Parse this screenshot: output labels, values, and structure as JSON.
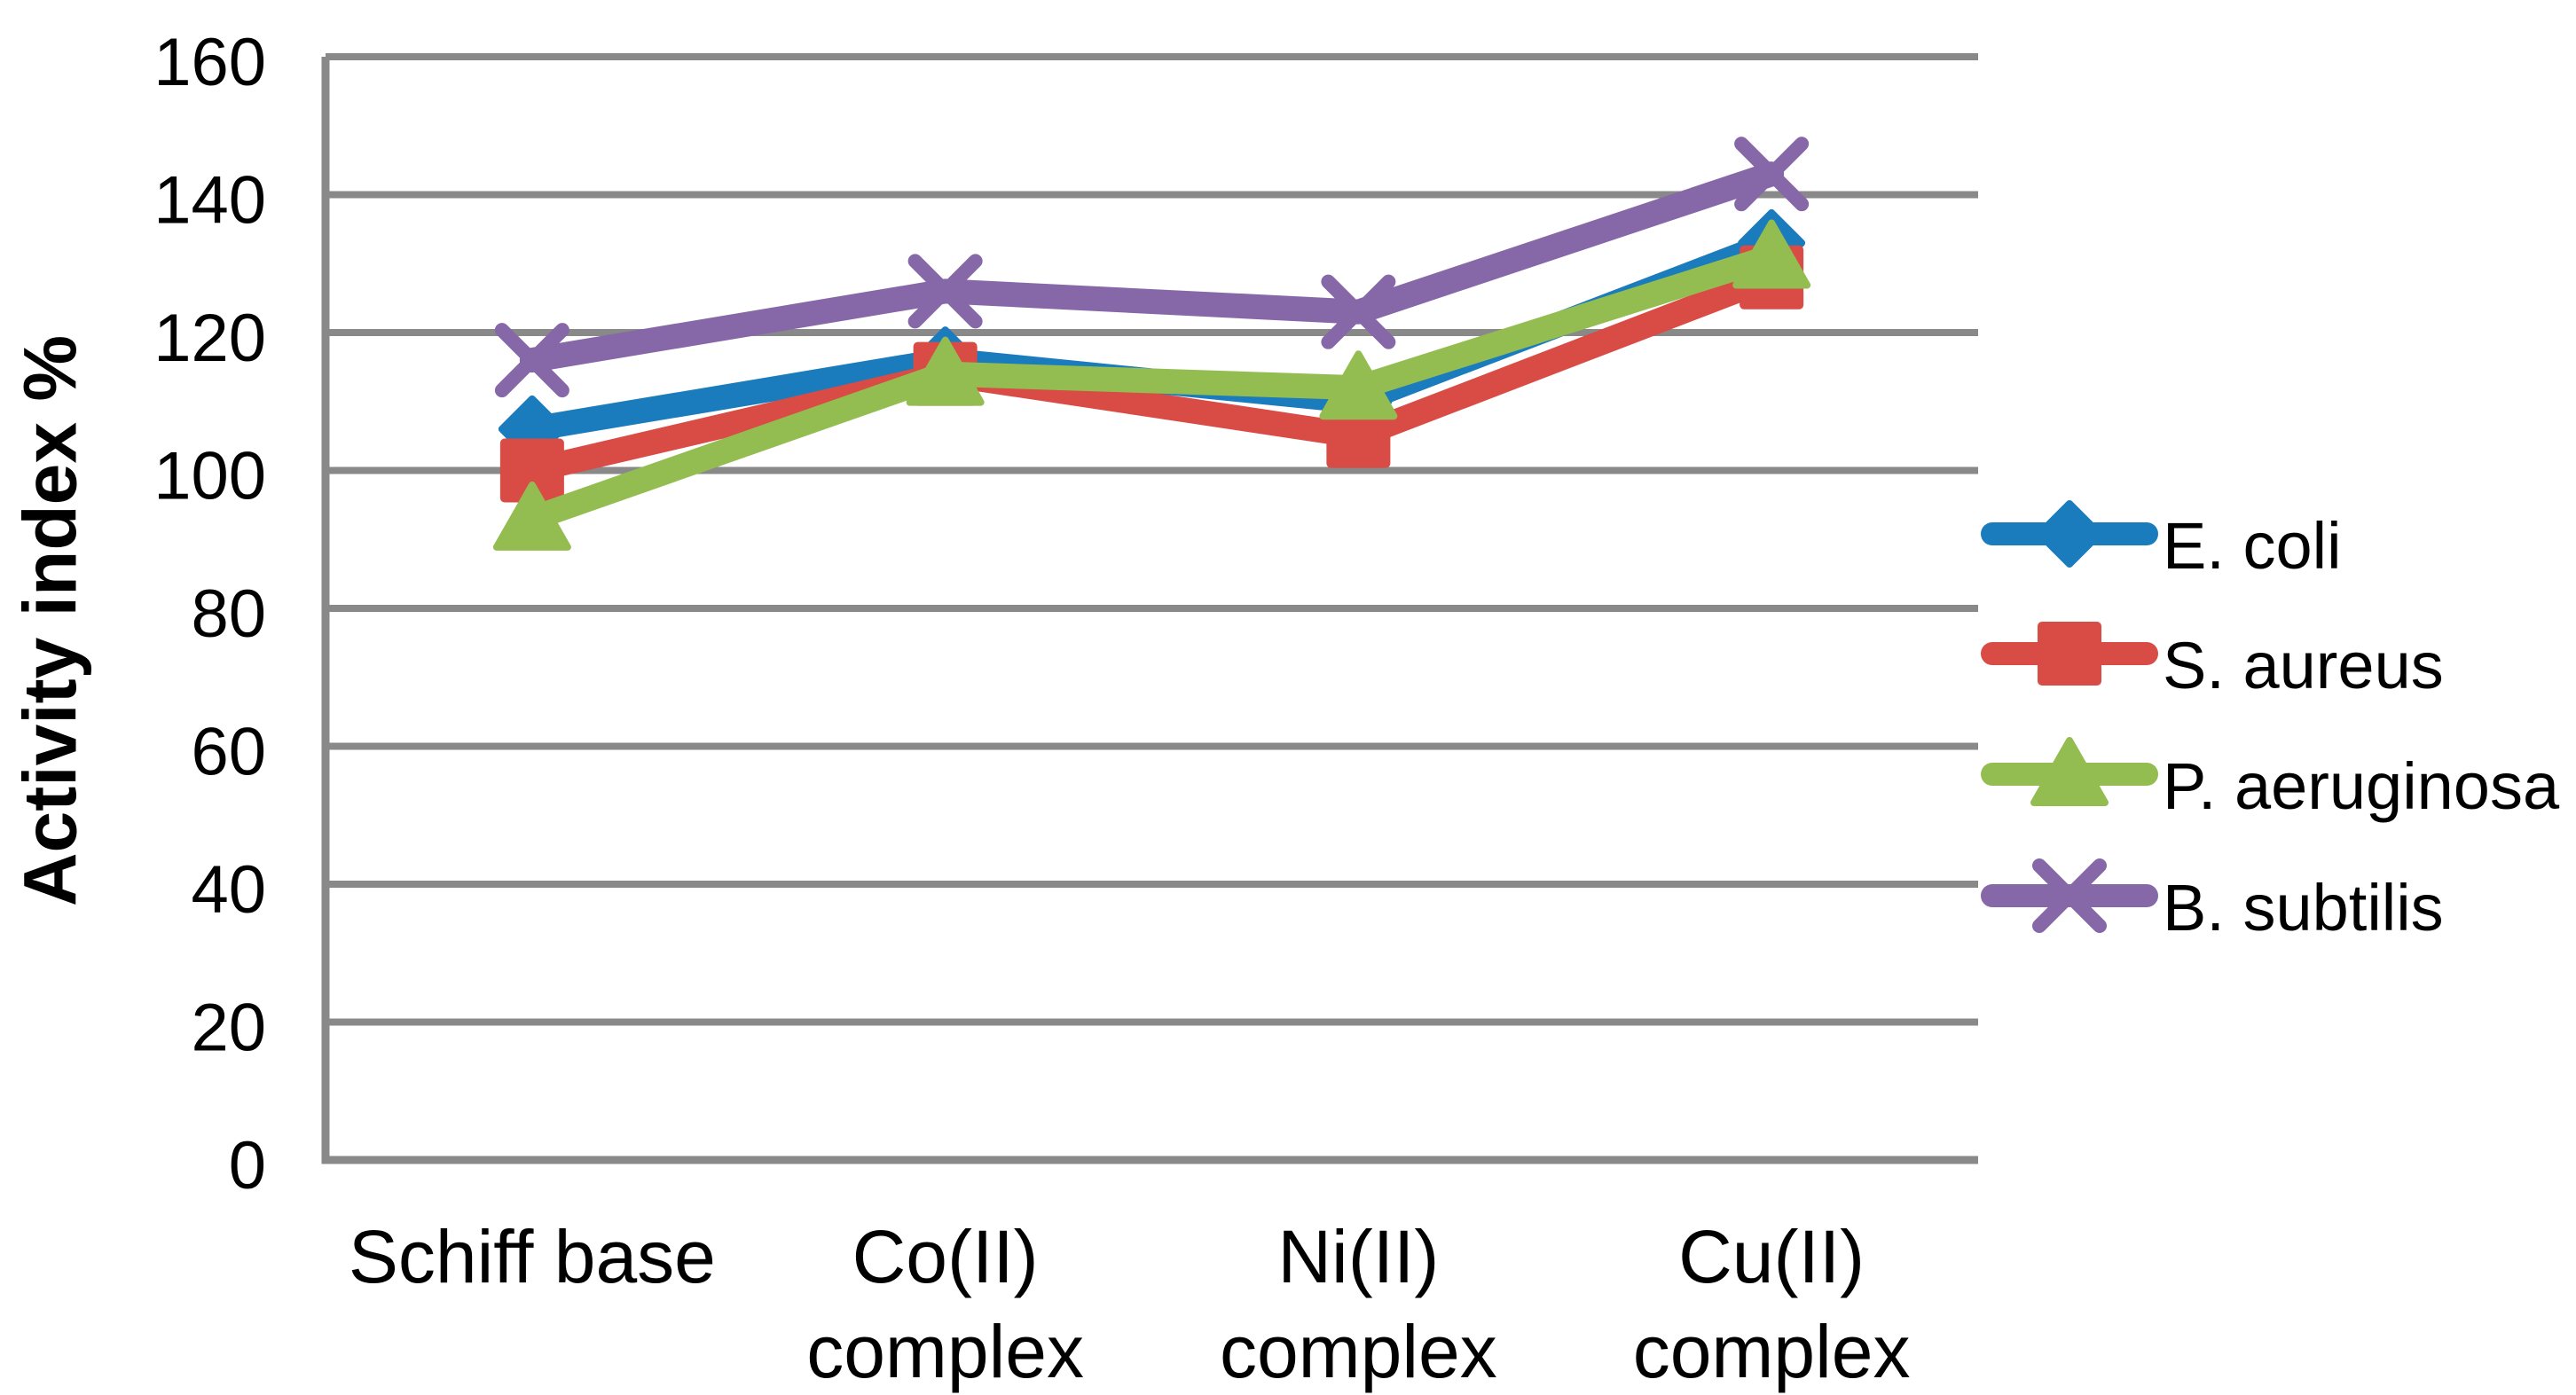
{
  "chart_data": {
    "type": "line",
    "title": "",
    "xlabel": "",
    "ylabel": "Activity index %",
    "ylim": [
      0,
      160
    ],
    "ytick_step": 20,
    "yticks": [
      0,
      20,
      40,
      60,
      80,
      100,
      120,
      140,
      160
    ],
    "grid": true,
    "legend_position": "right",
    "categories": [
      "Schiff base",
      "Co(II) complex",
      "Ni(II) complex",
      "Cu(II) complex"
    ],
    "categories_lines": [
      [
        "Schiff base"
      ],
      [
        "Co(II)",
        "complex"
      ],
      [
        "Ni(II)",
        "complex"
      ],
      [
        "Cu(II)",
        "complex"
      ]
    ],
    "series": [
      {
        "name": "E. coli",
        "marker": "diamond",
        "color": "#1B7CBD",
        "values": [
          106,
          116,
          110,
          133
        ]
      },
      {
        "name": "S. aureus",
        "marker": "square",
        "color": "#D94B45",
        "values": [
          100,
          114,
          105,
          128
        ]
      },
      {
        "name": "P. aeruginosa",
        "marker": "triangle",
        "color": "#94BD51",
        "values": [
          93,
          114,
          112,
          131
        ]
      },
      {
        "name": "B. subtilis",
        "marker": "x",
        "color": "#8667A8",
        "values": [
          116,
          126,
          123,
          143
        ]
      }
    ]
  },
  "colors": {
    "gridline": "#898989",
    "axis": "#898989",
    "text": "#000000",
    "background": "#FFFFFF"
  }
}
